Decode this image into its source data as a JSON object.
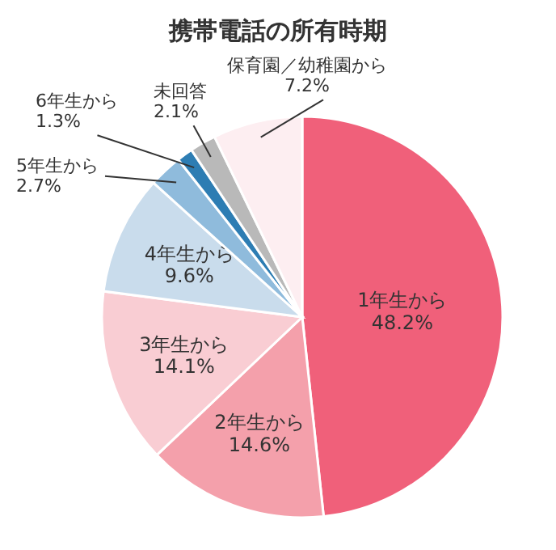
{
  "chart_data": {
    "type": "pie",
    "title": "携帯電話の所有時期",
    "categories": [
      "1年生から",
      "2年生から",
      "3年生から",
      "4年生から",
      "5年生から",
      "6年生から",
      "未回答",
      "保育園／幼稚園から"
    ],
    "values": [
      48.2,
      14.6,
      14.1,
      9.6,
      2.7,
      1.3,
      2.1,
      7.2
    ],
    "colors": [
      "#f0607a",
      "#f4a0ab",
      "#f9cdd3",
      "#c9dcec",
      "#8fbbdc",
      "#2d7db3",
      "#b9b9b9",
      "#fdeef1"
    ],
    "value_labels": [
      "48.2%",
      "14.6%",
      "14.1%",
      "9.6%",
      "2.7%",
      "1.3%",
      "2.1%",
      "7.2%"
    ]
  }
}
